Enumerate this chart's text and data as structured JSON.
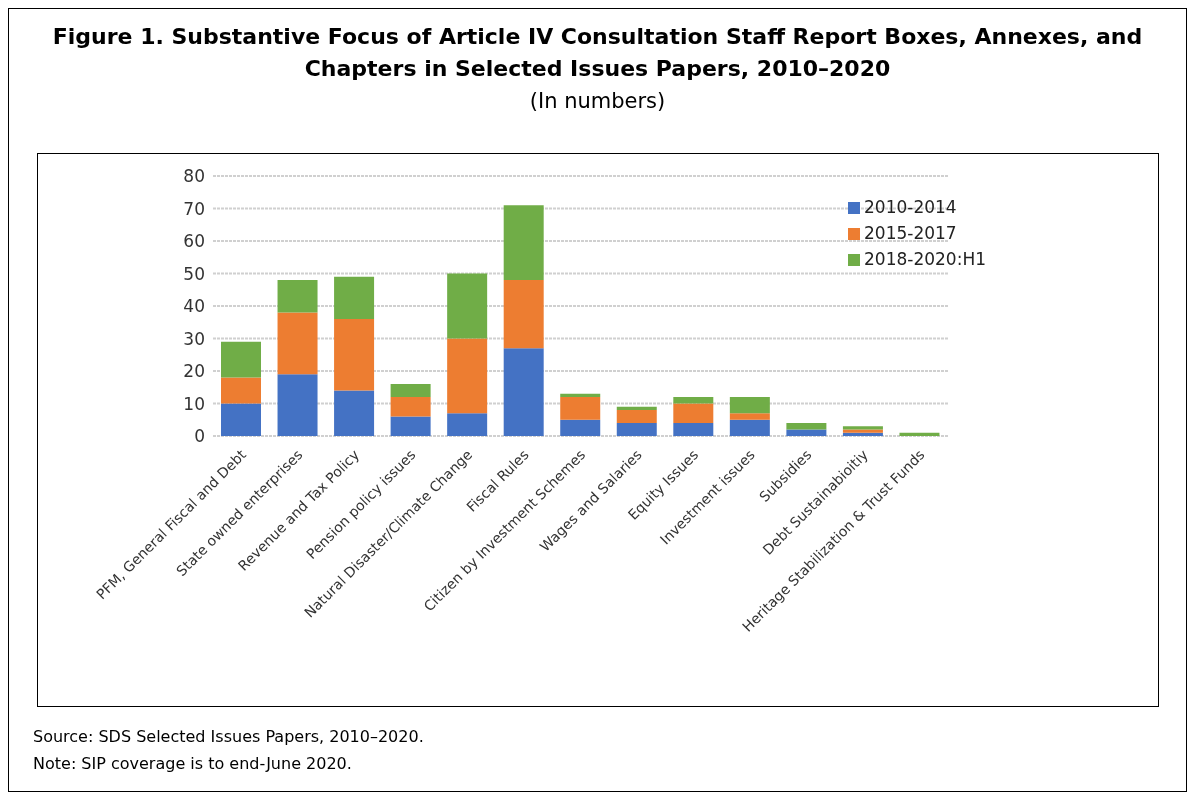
{
  "chart_data": {
    "type": "bar",
    "title": "Figure 1. Substantive Focus of Article IV Consultation Staff Report Boxes, Annexes, and Chapters in Selected Issues Papers, 2010–2020",
    "subtitle": "(In numbers)",
    "categories": [
      "PFM, General Fiscal and Debt",
      "State owned enterprises",
      "Revenue and Tax Policy",
      "Pension policy issues",
      "Natural Disaster/Climate Change",
      "Fiscal Rules",
      "Citizen by Investment Schemes",
      "Wages and Salaries",
      "Equity Issues",
      "Investment issues",
      "Subsidies",
      "Debt Sustainabioitiy",
      "Heritage Stabilization & Trust Funds"
    ],
    "series": [
      {
        "name": "2010-2014",
        "color": "#4472c4",
        "values": [
          10,
          19,
          14,
          6,
          7,
          27,
          5,
          4,
          4,
          5,
          2,
          1,
          0
        ]
      },
      {
        "name": "2015-2017",
        "color": "#ed7d31",
        "values": [
          8,
          19,
          22,
          6,
          23,
          21,
          7,
          4,
          6,
          2,
          0,
          1,
          0
        ]
      },
      {
        "name": "2018-2020:H1",
        "color": "#70ad47",
        "values": [
          11,
          10,
          13,
          4,
          20,
          23,
          1,
          1,
          2,
          5,
          2,
          1,
          1
        ]
      }
    ],
    "stacked": true,
    "ylim": [
      0,
      80
    ],
    "yticks": [
      0,
      10,
      20,
      30,
      40,
      50,
      60,
      70,
      80
    ],
    "grid": "y",
    "legend": "top right",
    "annotations": [
      "Source: SDS Selected Issues Papers, 2010–2020.",
      "Note: SIP coverage is to end-June 2020."
    ]
  }
}
